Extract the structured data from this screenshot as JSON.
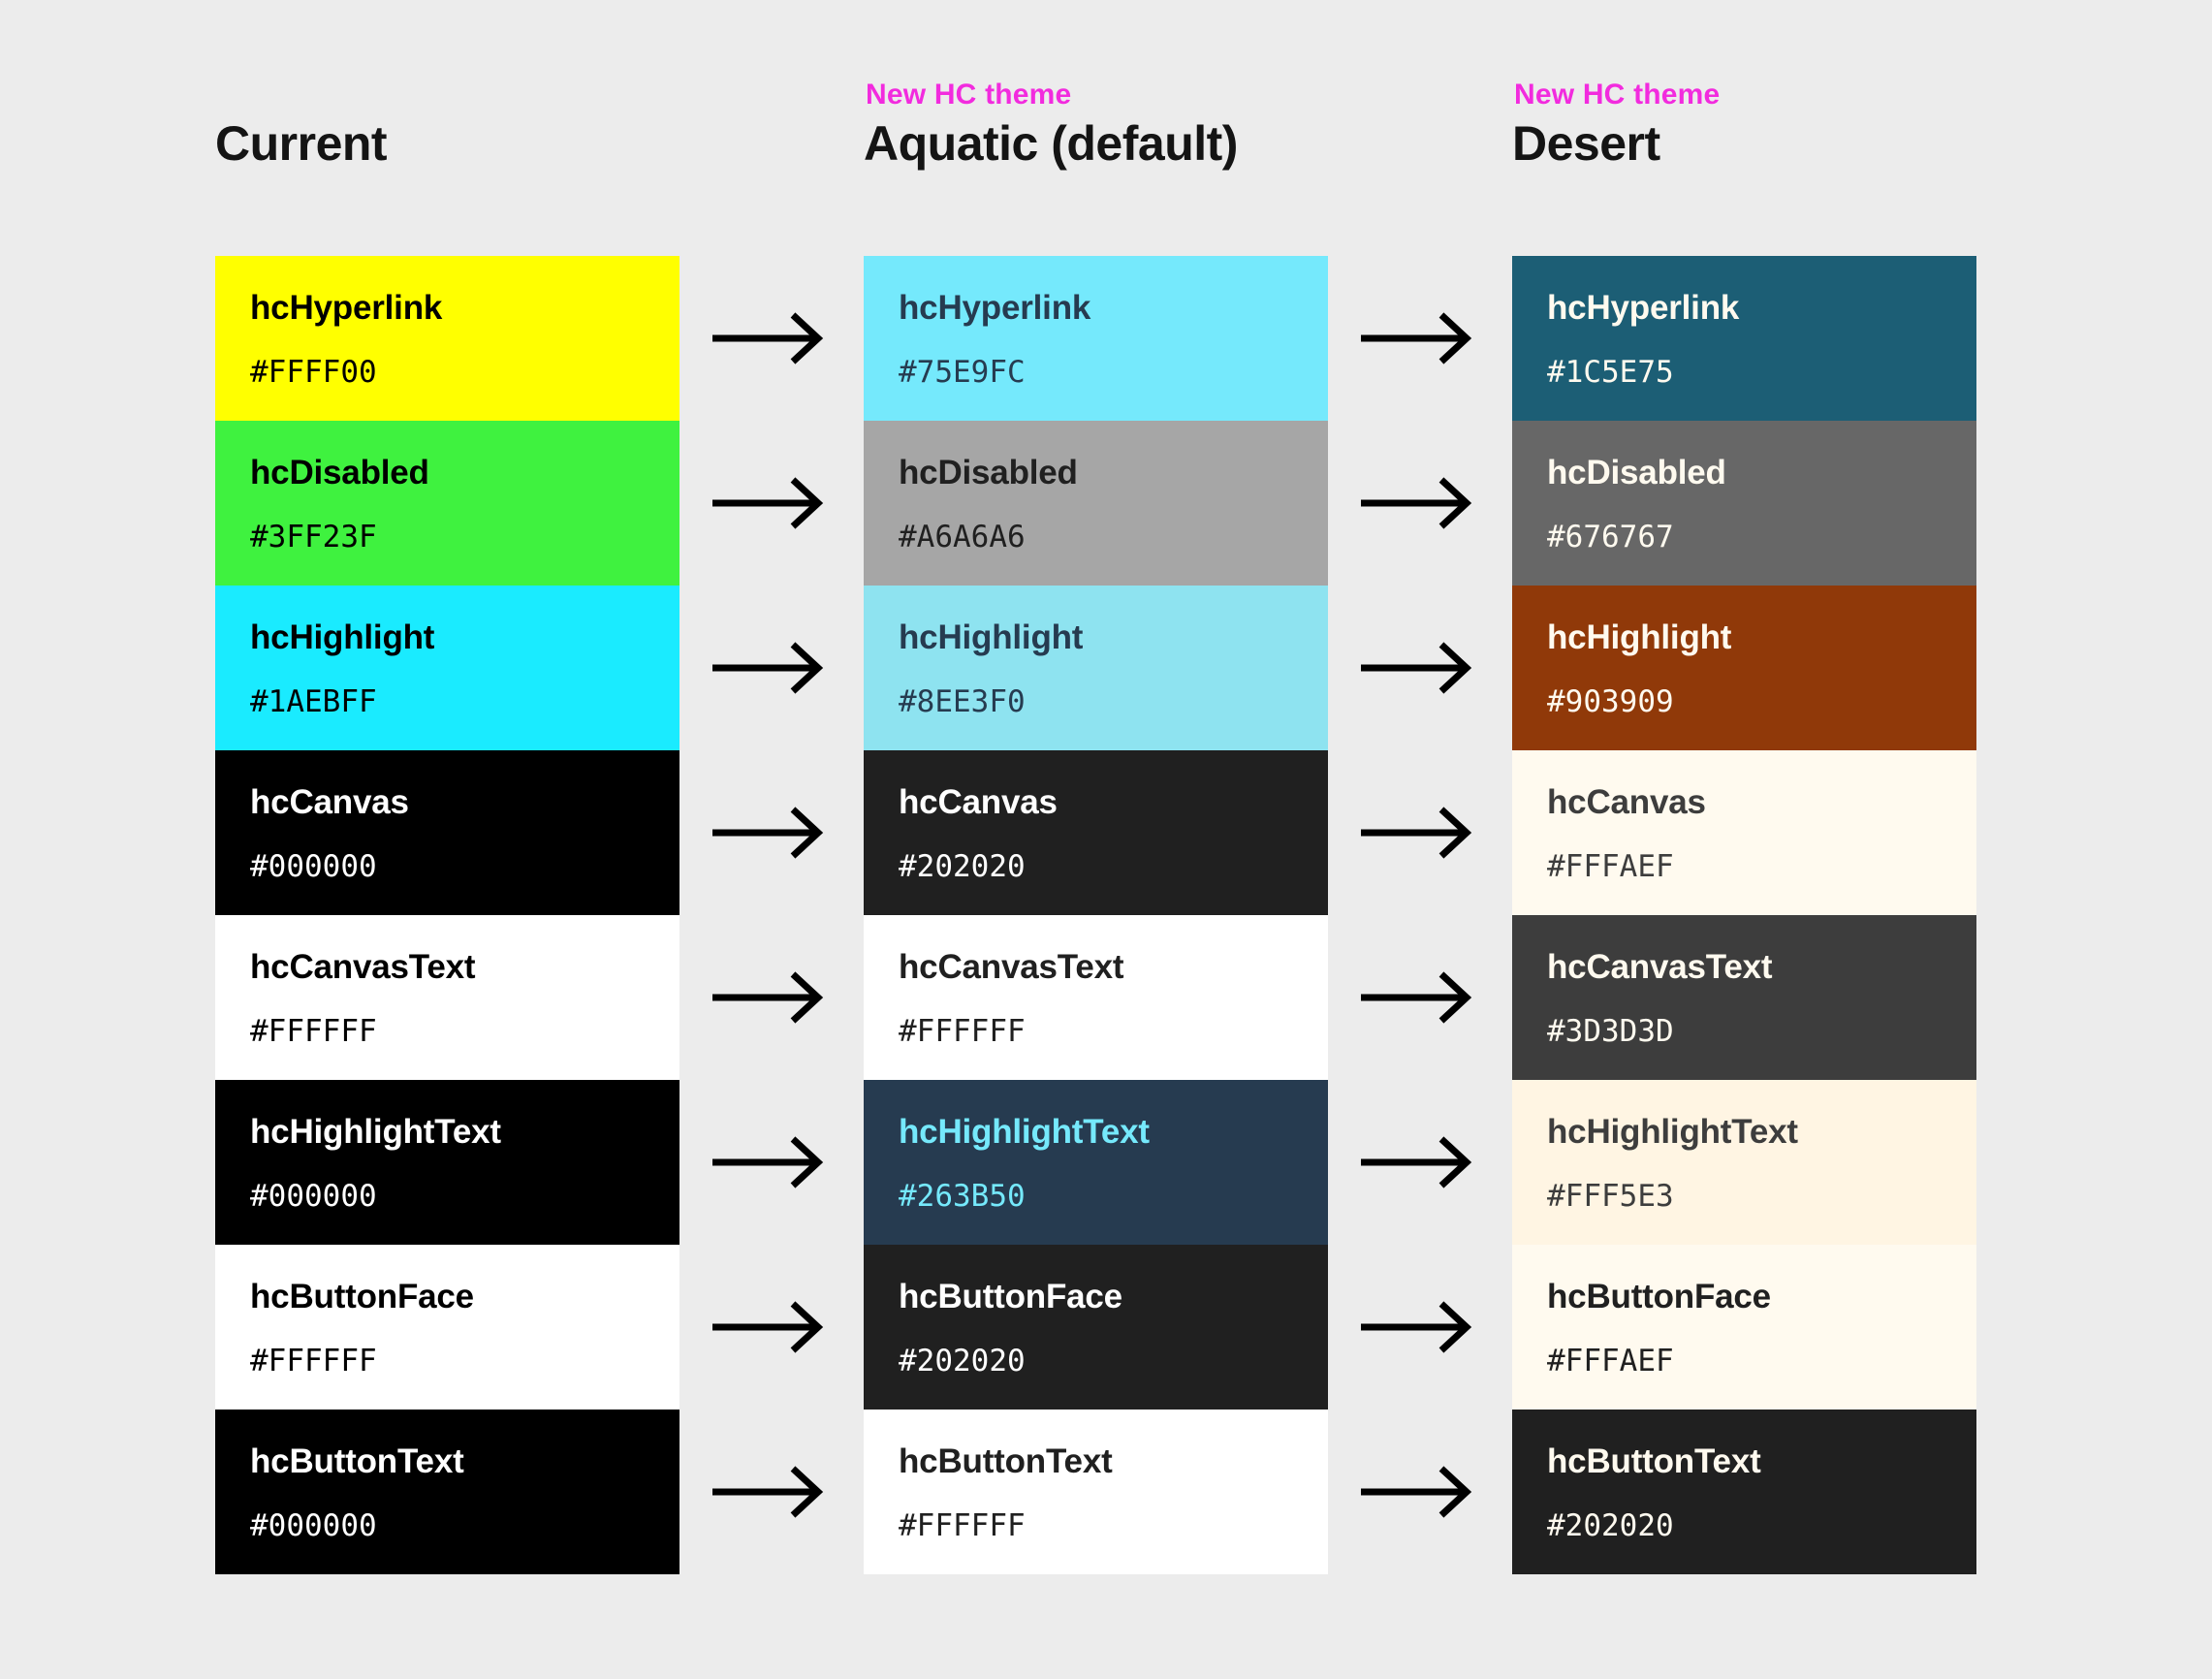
{
  "page": {
    "background": "#ECECEC",
    "annotation_color": "#F22BDE",
    "arrow_color": "#000000",
    "title_color": "#141414"
  },
  "columns": [
    {
      "eyebrow": "",
      "title": "Current",
      "swatches": [
        {
          "name": "hcHyperlink",
          "hex": "#FFFF00",
          "bg": "#FFFF00",
          "fg": "#000000"
        },
        {
          "name": "hcDisabled",
          "hex": "#3FF23F",
          "bg": "#3FF23F",
          "fg": "#000000"
        },
        {
          "name": "hcHighlight",
          "hex": "#1AEBFF",
          "bg": "#1AEBFF",
          "fg": "#000000"
        },
        {
          "name": "hcCanvas",
          "hex": "#000000",
          "bg": "#000000",
          "fg": "#FFFFFF"
        },
        {
          "name": "hcCanvasText",
          "hex": "#FFFFFF",
          "bg": "#FFFFFF",
          "fg": "#000000"
        },
        {
          "name": "hcHighlightText",
          "hex": "#000000",
          "bg": "#000000",
          "fg": "#FFFFFF"
        },
        {
          "name": "hcButtonFace",
          "hex": "#FFFFFF",
          "bg": "#FFFFFF",
          "fg": "#000000"
        },
        {
          "name": "hcButtonText",
          "hex": "#000000",
          "bg": "#000000",
          "fg": "#FFFFFF"
        }
      ]
    },
    {
      "eyebrow": "New HC theme",
      "title": "Aquatic (default)",
      "swatches": [
        {
          "name": "hcHyperlink",
          "hex": "#75E9FC",
          "bg": "#75E9FC",
          "fg": "#263B50"
        },
        {
          "name": "hcDisabled",
          "hex": "#A6A6A6",
          "bg": "#A6A6A6",
          "fg": "#202020"
        },
        {
          "name": "hcHighlight",
          "hex": "#8EE3F0",
          "bg": "#8EE3F0",
          "fg": "#263B50"
        },
        {
          "name": "hcCanvas",
          "hex": "#202020",
          "bg": "#202020",
          "fg": "#FFFFFF"
        },
        {
          "name": "hcCanvasText",
          "hex": "#FFFFFF",
          "bg": "#FFFFFF",
          "fg": "#202020"
        },
        {
          "name": "hcHighlightText",
          "hex": "#263B50",
          "bg": "#263B50",
          "fg": "#75E9FC"
        },
        {
          "name": "hcButtonFace",
          "hex": "#202020",
          "bg": "#202020",
          "fg": "#FFFFFF"
        },
        {
          "name": "hcButtonText",
          "hex": "#FFFFFF",
          "bg": "#FFFFFF",
          "fg": "#202020"
        }
      ]
    },
    {
      "eyebrow": "New HC theme",
      "title": "Desert",
      "swatches": [
        {
          "name": "hcHyperlink",
          "hex": "#1C5E75",
          "bg": "#1C5E75",
          "fg": "#FFFAEF"
        },
        {
          "name": "hcDisabled",
          "hex": "#676767",
          "bg": "#676767",
          "fg": "#FFFAEF"
        },
        {
          "name": "hcHighlight",
          "hex": "#903909",
          "bg": "#903909",
          "fg": "#FFFAEF"
        },
        {
          "name": "hcCanvas",
          "hex": "#FFFAEF",
          "bg": "#FFFAEF",
          "fg": "#3D3D3D"
        },
        {
          "name": "hcCanvasText",
          "hex": "#3D3D3D",
          "bg": "#3D3D3D",
          "fg": "#FFFAEF"
        },
        {
          "name": "hcHighlightText",
          "hex": "#FFF5E3",
          "bg": "#FFF5E3",
          "fg": "#3D3D3D"
        },
        {
          "name": "hcButtonFace",
          "hex": "#FFFAEF",
          "bg": "#FFFAEF",
          "fg": "#202020"
        },
        {
          "name": "hcButtonText",
          "hex": "#202020",
          "bg": "#202020",
          "fg": "#FFFAEF"
        }
      ]
    }
  ]
}
